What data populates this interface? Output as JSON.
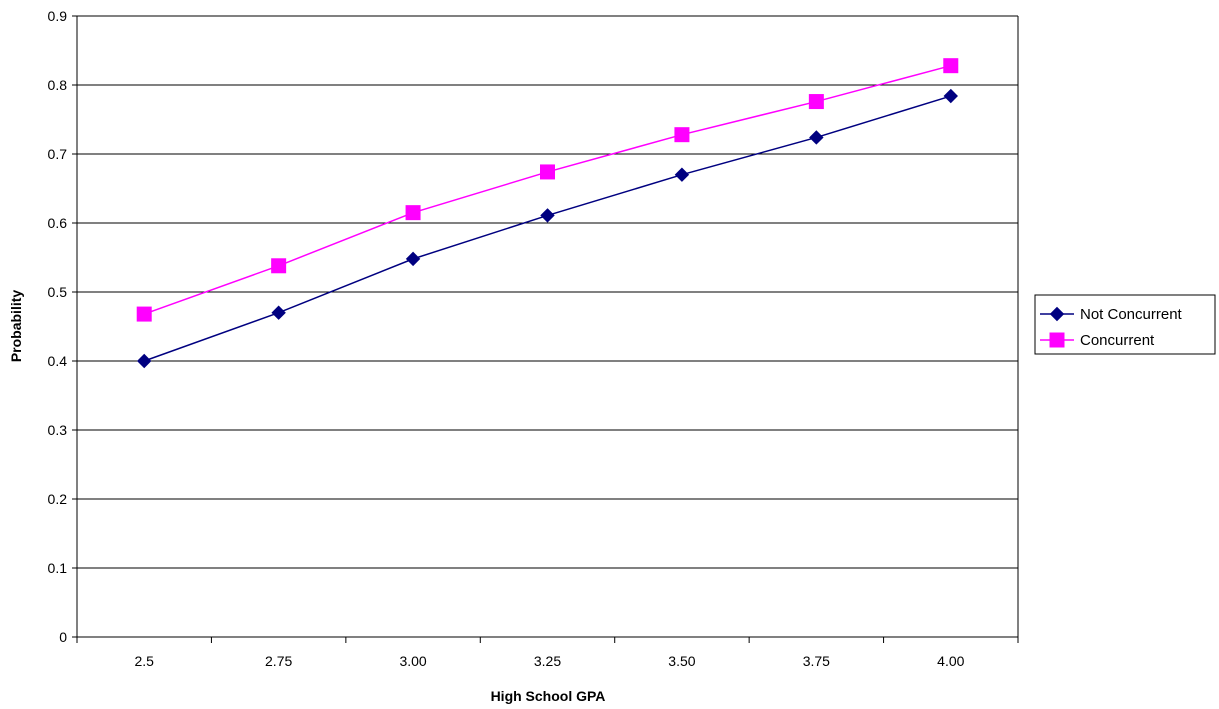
{
  "chart_data": {
    "type": "line",
    "title": "",
    "xlabel": "High School GPA",
    "ylabel": "Probability",
    "categories": [
      "2.5",
      "2.75",
      "3.00",
      "3.25",
      "3.50",
      "3.75",
      "4.00"
    ],
    "ylim": [
      0,
      0.9
    ],
    "yticks": [
      "0",
      "0.1",
      "0.2",
      "0.3",
      "0.4",
      "0.5",
      "0.6",
      "0.7",
      "0.8",
      "0.9"
    ],
    "grid": "horizontal",
    "legend_position": "right",
    "series": [
      {
        "name": "Not Concurrent",
        "color": "#000080",
        "marker": "diamond",
        "values": [
          0.4,
          0.47,
          0.548,
          0.611,
          0.67,
          0.724,
          0.784
        ]
      },
      {
        "name": "Concurrent",
        "color": "#FF00FF",
        "marker": "square",
        "values": [
          0.468,
          0.538,
          0.615,
          0.674,
          0.728,
          0.776,
          0.828
        ]
      }
    ]
  }
}
